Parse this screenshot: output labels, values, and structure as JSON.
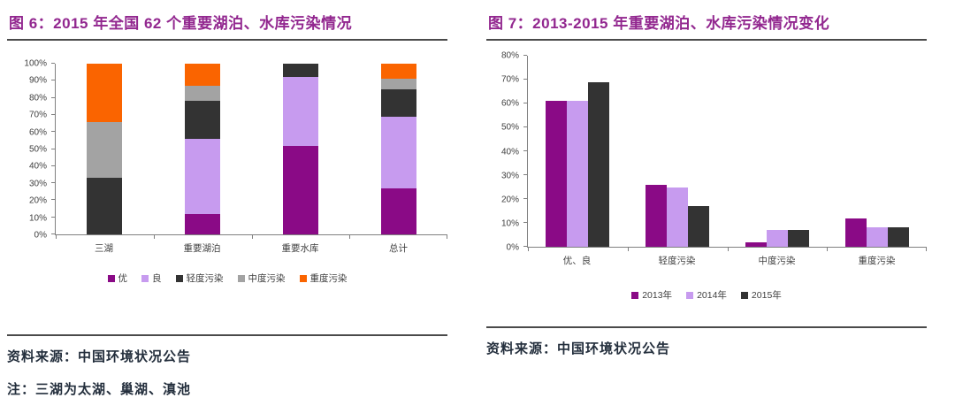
{
  "theme": {
    "title_color": "#92278F",
    "rule_color": "#4A4A4A",
    "axis_color": "#808080",
    "label_color": "#3F3F3F",
    "source_color": "#232E3C"
  },
  "fig6": {
    "title": "图 6：2015 年全国 62 个重要湖泊、水库污染情况",
    "source": "资料来源：中国环境状况公告",
    "note": "注：三湖为太湖、巢湖、滇池"
  },
  "fig7": {
    "title": "图 7：2013-2015 年重要湖泊、水库污染情况变化",
    "source": "资料来源：中国环境状况公告"
  },
  "chart_data": [
    {
      "type": "bar",
      "variant": "stacked-100",
      "title": "2015 年全国 62 个重要湖泊、水库污染情况",
      "categories": [
        "三湖",
        "重要湖泊",
        "重要水库",
        "总计"
      ],
      "series": [
        {
          "name": "优",
          "color": "#8A0A86",
          "values": [
            0,
            12,
            52,
            27
          ]
        },
        {
          "name": "良",
          "color": "#C79BEF",
          "values": [
            0,
            44,
            40,
            42
          ]
        },
        {
          "name": "轻度污染",
          "color": "#333333",
          "values": [
            33,
            22,
            8,
            16
          ]
        },
        {
          "name": "中度污染",
          "color": "#A3A3A3",
          "values": [
            33,
            9,
            0,
            6
          ]
        },
        {
          "name": "重度污染",
          "color": "#FA6400",
          "values": [
            34,
            13,
            0,
            9
          ]
        }
      ],
      "ylim": [
        0,
        100
      ],
      "yticks": [
        {
          "v": 0,
          "label": "0%"
        },
        {
          "v": 10,
          "label": "10%"
        },
        {
          "v": 20,
          "label": "20%"
        },
        {
          "v": 30,
          "label": "30%"
        },
        {
          "v": 40,
          "label": "40%"
        },
        {
          "v": 50,
          "label": "50%"
        },
        {
          "v": 60,
          "label": "60%"
        },
        {
          "v": 70,
          "label": "70%"
        },
        {
          "v": 80,
          "label": "80%"
        },
        {
          "v": 90,
          "label": "90%"
        },
        {
          "v": 100,
          "label": "100%"
        }
      ],
      "grid": false,
      "legend_position": "bottom"
    },
    {
      "type": "bar",
      "variant": "grouped",
      "title": "2013-2015 年重要湖泊、水库污染情况变化",
      "categories": [
        "优、良",
        "轻度污染",
        "中度污染",
        "重度污染"
      ],
      "series": [
        {
          "name": "2013年",
          "color": "#8A0A86",
          "values": [
            61,
            26,
            2,
            12
          ]
        },
        {
          "name": "2014年",
          "color": "#C79BEF",
          "values": [
            61,
            25,
            7,
            8
          ]
        },
        {
          "name": "2015年",
          "color": "#333333",
          "values": [
            69,
            17,
            7,
            8
          ]
        }
      ],
      "ylim": [
        0,
        80
      ],
      "yticks": [
        {
          "v": 0,
          "label": "0%"
        },
        {
          "v": 10,
          "label": "10%"
        },
        {
          "v": 20,
          "label": "20%"
        },
        {
          "v": 30,
          "label": "30%"
        },
        {
          "v": 40,
          "label": "40%"
        },
        {
          "v": 50,
          "label": "50%"
        },
        {
          "v": 60,
          "label": "60%"
        },
        {
          "v": 70,
          "label": "70%"
        },
        {
          "v": 80,
          "label": "80%"
        }
      ],
      "grid": false,
      "legend_position": "bottom"
    }
  ]
}
